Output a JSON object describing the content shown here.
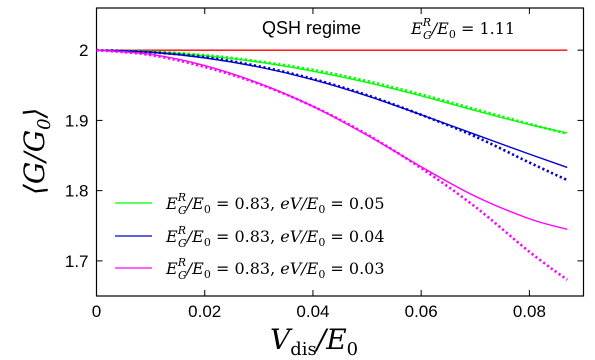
{
  "chart_data": {
    "type": "line",
    "annotation": {
      "text": "QSH regime",
      "formula": "E_G^R/E_0 = 1.11"
    },
    "xlabel": "V_dis/E_0",
    "ylabel": "⟨G/G_0⟩",
    "xlim": [
      0,
      0.09
    ],
    "ylim": [
      1.65,
      2.06
    ],
    "xticks": [
      "0",
      "0.02",
      "0.04",
      "0.06",
      "0.08"
    ],
    "xtick_values": [
      0,
      0.02,
      0.04,
      0.06,
      0.08
    ],
    "yticks": [
      "1.7",
      "1.8",
      "1.9",
      "2"
    ],
    "ytick_values": [
      1.7,
      1.8,
      1.9,
      2.0
    ],
    "legend_position": "bottom-left",
    "series": [
      {
        "name": "",
        "color": "#ff0000",
        "style": "solid",
        "x": [
          0,
          0.01,
          0.02,
          0.03,
          0.04,
          0.05,
          0.06,
          0.07,
          0.08,
          0.087
        ],
        "y": [
          2.0,
          2.0,
          2.0,
          2.0,
          2.0,
          2.0,
          2.0,
          2.0,
          2.0,
          2.0
        ]
      },
      {
        "name": "E_G^R/E_0 = 0.83, eV/E_0 = 0.05",
        "color": "#00ff00",
        "style": "solid",
        "x": [
          0,
          0.01,
          0.02,
          0.03,
          0.04,
          0.05,
          0.06,
          0.07,
          0.08,
          0.087
        ],
        "y": [
          2.0,
          1.998,
          1.992,
          1.983,
          1.97,
          1.954,
          1.935,
          1.914,
          1.894,
          1.882
        ]
      },
      {
        "name": "",
        "color": "#00ff00",
        "style": "dotted",
        "x": [
          0,
          0.01,
          0.02,
          0.03,
          0.04,
          0.05,
          0.06,
          0.07,
          0.08,
          0.087
        ],
        "y": [
          2.0,
          1.998,
          1.993,
          1.984,
          1.972,
          1.956,
          1.937,
          1.916,
          1.895,
          1.881
        ]
      },
      {
        "name": "E_G^R/E_0 = 0.83, eV/E_0 = 0.04",
        "color": "#0000cc",
        "style": "solid",
        "x": [
          0,
          0.01,
          0.02,
          0.03,
          0.04,
          0.05,
          0.06,
          0.07,
          0.08,
          0.087
        ],
        "y": [
          2.0,
          1.997,
          1.989,
          1.976,
          1.958,
          1.935,
          1.908,
          1.88,
          1.852,
          1.833
        ]
      },
      {
        "name": "",
        "color": "#0000cc",
        "style": "dotted",
        "x": [
          0,
          0.01,
          0.02,
          0.03,
          0.04,
          0.05,
          0.06,
          0.07,
          0.08,
          0.087
        ],
        "y": [
          2.0,
          1.997,
          1.99,
          1.977,
          1.959,
          1.936,
          1.908,
          1.877,
          1.84,
          1.815
        ]
      },
      {
        "name": "E_G^R/E_0 = 0.83, eV/E_0 = 0.03",
        "color": "#ff00ff",
        "style": "solid",
        "x": [
          0,
          0.01,
          0.02,
          0.03,
          0.04,
          0.05,
          0.06,
          0.07,
          0.08,
          0.087
        ],
        "y": [
          2.0,
          1.994,
          1.978,
          1.953,
          1.92,
          1.879,
          1.834,
          1.792,
          1.76,
          1.745
        ]
      },
      {
        "name": "",
        "color": "#ff00ff",
        "style": "dotted",
        "x": [
          0,
          0.01,
          0.02,
          0.03,
          0.04,
          0.05,
          0.06,
          0.07,
          0.08,
          0.087
        ],
        "y": [
          2.0,
          1.993,
          1.976,
          1.952,
          1.92,
          1.88,
          1.832,
          1.777,
          1.713,
          1.673
        ]
      }
    ]
  }
}
